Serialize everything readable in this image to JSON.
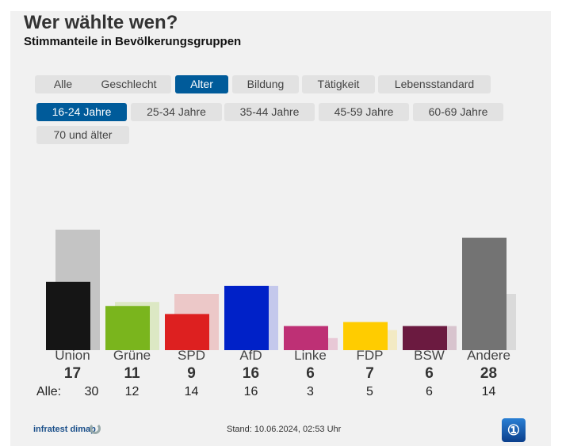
{
  "title": "Wer wählte wen?",
  "subtitle": "Stimmanteile in Bevölkerungsgruppen",
  "tabs": [
    {
      "label": "Alle"
    },
    {
      "label": "Geschlecht"
    },
    {
      "label": "Alter",
      "active": true
    },
    {
      "label": "Bildung"
    },
    {
      "label": "Tätigkeit"
    },
    {
      "label": "Lebensstandard"
    }
  ],
  "subtabs": [
    {
      "label": "16-24 Jahre",
      "active": true
    },
    {
      "label": "25-34 Jahre"
    },
    {
      "label": "35-44 Jahre"
    },
    {
      "label": "45-59 Jahre"
    },
    {
      "label": "60-69 Jahre"
    },
    {
      "label": "70 und älter"
    }
  ],
  "chart_data": {
    "type": "bar",
    "categories": [
      "Union",
      "Grüne",
      "SPD",
      "AfD",
      "Linke",
      "FDP",
      "BSW",
      "Andere"
    ],
    "series": [
      {
        "name": "16-24 Jahre",
        "values": [
          17,
          11,
          9,
          16,
          6,
          7,
          6,
          28
        ]
      },
      {
        "name": "Alle",
        "values": [
          30,
          12,
          14,
          16,
          3,
          5,
          6,
          14
        ]
      }
    ],
    "colors": [
      "#151515",
      "#7ab51d",
      "#dd2020",
      "#0021c8",
      "#be3075",
      "#ffcc00",
      "#6b1a40",
      "#737373"
    ],
    "light_colors": [
      "#c4c4c4",
      "#dce8c4",
      "#ecc8c8",
      "#c4c8ec",
      "#e8c8d6",
      "#f3eac4",
      "#d8c4ce",
      "#dadada"
    ],
    "alle_prefix": "Alle:"
  },
  "footer": {
    "source": "infratest dimap",
    "stand": "Stand: 10.06.2024, 02:53 Uhr"
  }
}
